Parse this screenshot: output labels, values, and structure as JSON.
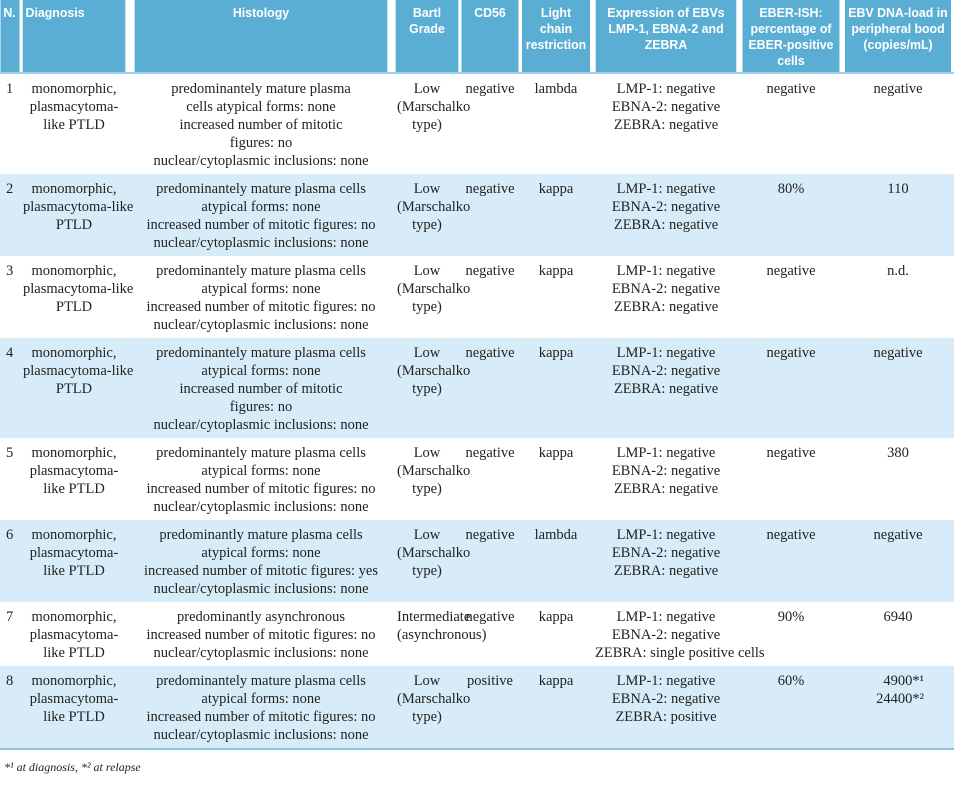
{
  "headers": [
    "N.",
    "Diagnosis",
    "Histology",
    "Bartl Grade",
    "CD56",
    "Light chain restriction",
    "Expression of EBVs LMP-1, EBNA-2 and ZEBRA",
    "EBER-ISH: percentage of EBER-positive cells",
    "EBV DNA-load in peripheral bood (copies/mL)"
  ],
  "colors": {
    "header": "#5aaed4",
    "alt_row": "#d7ecf8"
  },
  "rows": [
    {
      "n": "1",
      "diagnosis": [
        "monomorphic,",
        "plasmacytoma-",
        "like PTLD"
      ],
      "histology": [
        "predominantely mature plasma",
        "cells atypical forms: none",
        "increased number of mitotic",
        "figures: no",
        "nuclear/cytoplasmic inclusions: none"
      ],
      "bartl": [
        "Low",
        "(Marschalko",
        "type)"
      ],
      "cd56": "negative",
      "light": "lambda",
      "expr": [
        "LMP-1: negative",
        "EBNA-2: negative",
        "ZEBRA: negative"
      ],
      "eber": "negative",
      "dna": [
        "negative"
      ]
    },
    {
      "n": "2",
      "diagnosis": [
        "monomorphic,",
        "plasmacytoma-like",
        "PTLD"
      ],
      "histology": [
        "predominantely mature plasma cells",
        "atypical forms: none",
        "increased number of mitotic figures: no",
        "nuclear/cytoplasmic  inclusions: none"
      ],
      "bartl": [
        "Low",
        "(Marschalko",
        "type)"
      ],
      "cd56": "negative",
      "light": "kappa",
      "expr": [
        "LMP-1: negative",
        "EBNA-2: negative",
        "ZEBRA: negative"
      ],
      "eber": "80%",
      "dna": [
        "110"
      ]
    },
    {
      "n": "3",
      "diagnosis": [
        "monomorphic,",
        "plasmacytoma-like",
        "PTLD"
      ],
      "histology": [
        "predominantely mature plasma cells",
        "atypical forms: none",
        "increased number of mitotic figures: no",
        "nuclear/cytoplasmic inclusions: none"
      ],
      "bartl": [
        "Low",
        "(Marschalko",
        "type)"
      ],
      "cd56": "negative",
      "light": "kappa",
      "expr": [
        "LMP-1: negative",
        "EBNA-2: negative",
        "ZEBRA: negative"
      ],
      "eber": "negative",
      "dna": [
        "n.d."
      ]
    },
    {
      "n": "4",
      "diagnosis": [
        "monomorphic,",
        "plasmacytoma-like",
        "PTLD"
      ],
      "histology": [
        "predominantely mature plasma cells",
        "atypical forms: none",
        "increased number of mitotic",
        "figures: no",
        "nuclear/cytoplasmic inclusions: none"
      ],
      "bartl": [
        "Low",
        "(Marschalko",
        "type)"
      ],
      "cd56": "negative",
      "light": "kappa",
      "expr": [
        "LMP-1: negative",
        "EBNA-2: negative",
        "ZEBRA: negative"
      ],
      "eber": "negative",
      "dna": [
        "negative"
      ]
    },
    {
      "n": "5",
      "diagnosis": [
        "monomorphic,",
        "plasmacytoma-",
        "like PTLD"
      ],
      "histology": [
        "predominantely mature plasma cells",
        "atypical forms: none",
        "increased number of mitotic figures: no",
        "nuclear/cytoplasmic inclusions: none"
      ],
      "bartl": [
        "Low",
        "(Marschalko",
        "type)"
      ],
      "cd56": "negative",
      "light": "kappa",
      "expr": [
        "LMP-1: negative",
        "EBNA-2: negative",
        "ZEBRA: negative"
      ],
      "eber": "negative",
      "dna": [
        "380"
      ]
    },
    {
      "n": "6",
      "diagnosis": [
        "monomorphic,",
        "plasmacytoma-",
        "like PTLD"
      ],
      "histology": [
        "predominantly mature plasma cells",
        "atypical forms: none",
        "increased number of mitotic figures: yes",
        "nuclear/cytoplasmic inclusions: none"
      ],
      "bartl": [
        "Low",
        "(Marschalko",
        "type)"
      ],
      "cd56": "negative",
      "light": "lambda",
      "expr": [
        "LMP-1: negative",
        "EBNA-2: negative",
        "ZEBRA: negative"
      ],
      "eber": "negative",
      "dna": [
        "negative"
      ]
    },
    {
      "n": "7",
      "diagnosis": [
        "monomorphic,",
        "plasmacytoma-",
        "like PTLD"
      ],
      "histology": [
        "predominantly asynchronous",
        "increased number of mitotic figures: no",
        "nuclear/cytoplasmic inclusions: none"
      ],
      "bartl": [
        "Intermediate",
        "(asynchronous)"
      ],
      "cd56": "negative",
      "light": "kappa",
      "expr": [
        "LMP-1: negative",
        "EBNA-2: negative",
        "ZEBRA: single positive cells"
      ],
      "eber": "90%",
      "dna": [
        "6940"
      ]
    },
    {
      "n": "8",
      "diagnosis": [
        "monomorphic,",
        "plasmacytoma-",
        "like PTLD"
      ],
      "histology": [
        "predominantely mature plasma cells",
        "atypical forms: none",
        "increased number of mitotic figures: no",
        "nuclear/cytoplasmic inclusions: none"
      ],
      "bartl": [
        "Low",
        "(Marschalko",
        "type)"
      ],
      "cd56": "positive",
      "light": "kappa",
      "expr": [
        "LMP-1: negative",
        "EBNA-2: negative",
        "ZEBRA: positive"
      ],
      "eber": "60%",
      "dna": [
        "4900*¹",
        "24400*²"
      ]
    }
  ],
  "footnote": "*¹ at diagnosis, *² at relapse"
}
